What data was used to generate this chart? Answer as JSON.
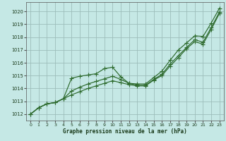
{
  "title": "Graphe pression niveau de la mer (hPa)",
  "background_color": "#c5e8e5",
  "plot_bg_color": "#c5e8e5",
  "grid_color": "#9dbdba",
  "line_color": "#2d6a2d",
  "xlim": [
    -0.5,
    23.5
  ],
  "ylim": [
    1011.5,
    1020.7
  ],
  "xticks": [
    0,
    1,
    2,
    3,
    4,
    5,
    6,
    7,
    8,
    9,
    10,
    11,
    12,
    13,
    14,
    15,
    16,
    17,
    18,
    19,
    20,
    21,
    22,
    23
  ],
  "yticks": [
    1012,
    1013,
    1014,
    1015,
    1016,
    1017,
    1018,
    1019,
    1020
  ],
  "line1_x": [
    0,
    1,
    2,
    3,
    4,
    5,
    6,
    7,
    8,
    9,
    10,
    11,
    12,
    13,
    14,
    15,
    16,
    17,
    18,
    19,
    20,
    21,
    22,
    23
  ],
  "line1_y": [
    1012.0,
    1012.5,
    1012.8,
    1012.9,
    1013.2,
    1014.8,
    1014.95,
    1015.05,
    1015.15,
    1015.55,
    1015.65,
    1014.9,
    1014.4,
    1014.35,
    1014.35,
    1014.85,
    1015.35,
    1016.2,
    1017.0,
    1017.55,
    1018.1,
    1018.05,
    1019.1,
    1020.25
  ],
  "line2_x": [
    0,
    1,
    2,
    3,
    4,
    5,
    6,
    7,
    8,
    9,
    10,
    11,
    12,
    13,
    14,
    15,
    16,
    17,
    18,
    19,
    20,
    21,
    22,
    23
  ],
  "line2_y": [
    1012.0,
    1012.5,
    1012.8,
    1012.9,
    1013.2,
    1013.8,
    1014.1,
    1014.35,
    1014.55,
    1014.75,
    1014.95,
    1014.7,
    1014.4,
    1014.25,
    1014.25,
    1014.7,
    1015.1,
    1015.9,
    1016.55,
    1017.2,
    1017.8,
    1017.6,
    1018.75,
    1019.95
  ],
  "line3_x": [
    0,
    1,
    2,
    3,
    4,
    5,
    6,
    7,
    8,
    9,
    10,
    11,
    12,
    13,
    14,
    15,
    16,
    17,
    18,
    19,
    20,
    21,
    22,
    23
  ],
  "line3_y": [
    1012.0,
    1012.5,
    1012.8,
    1012.9,
    1013.2,
    1013.5,
    1013.75,
    1014.0,
    1014.2,
    1014.4,
    1014.6,
    1014.45,
    1014.3,
    1014.2,
    1014.2,
    1014.65,
    1015.0,
    1015.75,
    1016.4,
    1017.1,
    1017.65,
    1017.45,
    1018.6,
    1019.85
  ]
}
